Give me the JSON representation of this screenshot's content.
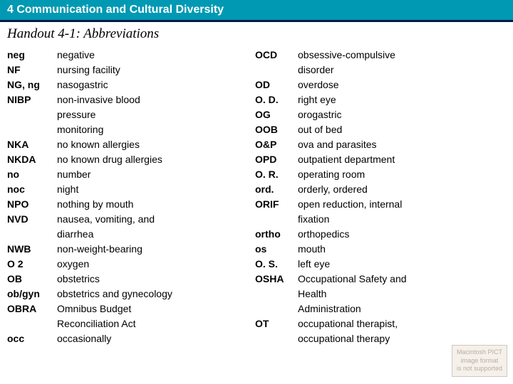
{
  "header": "4 Communication and Cultural Diversity",
  "subtitle": "Handout 4-1: Abbreviations",
  "col1": {
    "abbr": [
      "neg",
      "NF",
      "NG, ng",
      "NIBP",
      "",
      "",
      "NKA",
      "NKDA",
      "no",
      "noc",
      "NPO",
      "NVD",
      "",
      "NWB",
      "O 2",
      "OB",
      "ob/gyn",
      "OBRA",
      "",
      "occ"
    ],
    "def": [
      "negative",
      "nursing facility",
      "nasogastric",
      "non-invasive blood",
      "pressure",
      "monitoring",
      "no known allergies",
      "no known drug allergies",
      "number",
      "night",
      "nothing by mouth",
      "nausea, vomiting, and",
      "diarrhea",
      "non-weight-bearing",
      "oxygen",
      "obstetrics",
      "obstetrics and gynecology",
      "Omnibus Budget",
      "Reconciliation Act",
      "occasionally"
    ]
  },
  "col2": {
    "abbr": [
      "OCD",
      "",
      "OD",
      "O. D.",
      "OG",
      "OOB",
      "O&P",
      "OPD",
      "O. R.",
      "ord.",
      "ORIF",
      "",
      "ortho",
      "os",
      "O. S.",
      "OSHA",
      "",
      "",
      "OT",
      ""
    ],
    "def": [
      "obsessive-compulsive",
      "disorder",
      "overdose",
      "right eye",
      "orogastric",
      "out of bed",
      "ova and parasites",
      "outpatient department",
      "operating room",
      "orderly, ordered",
      "open reduction, internal",
      "fixation",
      "orthopedics",
      "mouth",
      "left eye",
      "Occupational Safety and",
      "Health",
      "Administration",
      "occupational therapist,",
      "occupational therapy"
    ]
  },
  "watermark": [
    "Macintosh PICT",
    "image format",
    "is not supported"
  ]
}
